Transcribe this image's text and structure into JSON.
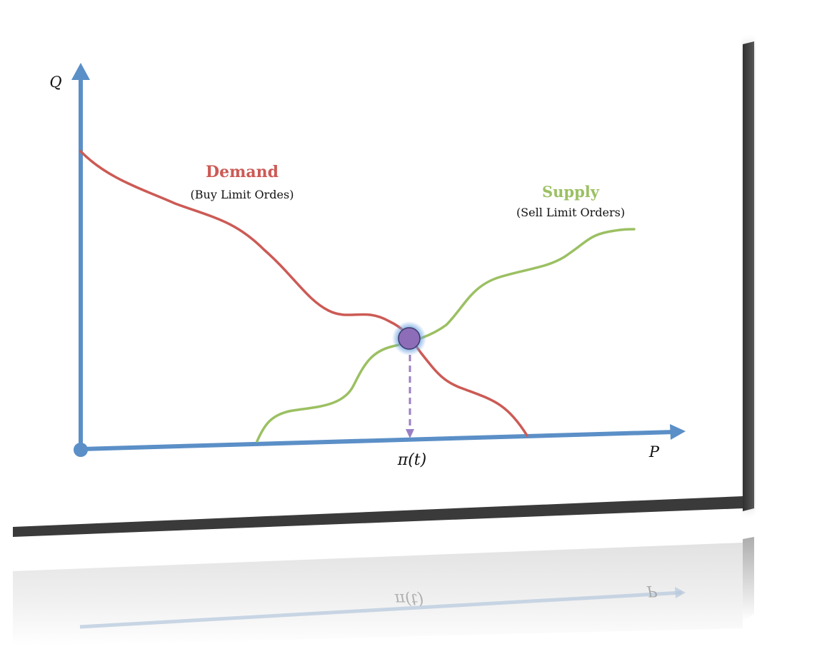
{
  "diagram": {
    "y_axis_label": "Q",
    "x_axis_label": "P",
    "equilibrium_label": "π(t)",
    "demand": {
      "title": "Demand",
      "subtitle": "(Buy Limit Ordes)"
    },
    "supply": {
      "title": "Supply",
      "subtitle": "(Sell Limit Orders)"
    },
    "reflection": {
      "equilibrium_label": "π(t)",
      "x_axis_label": "P"
    }
  },
  "colors": {
    "axis": "#5b8fc7",
    "demand": "#cc5a55",
    "supply": "#9bc062",
    "equilibrium_point": "#8e6db8",
    "drop_line": "#9a7fc4",
    "slab_shadow": "#3c3c3c"
  }
}
